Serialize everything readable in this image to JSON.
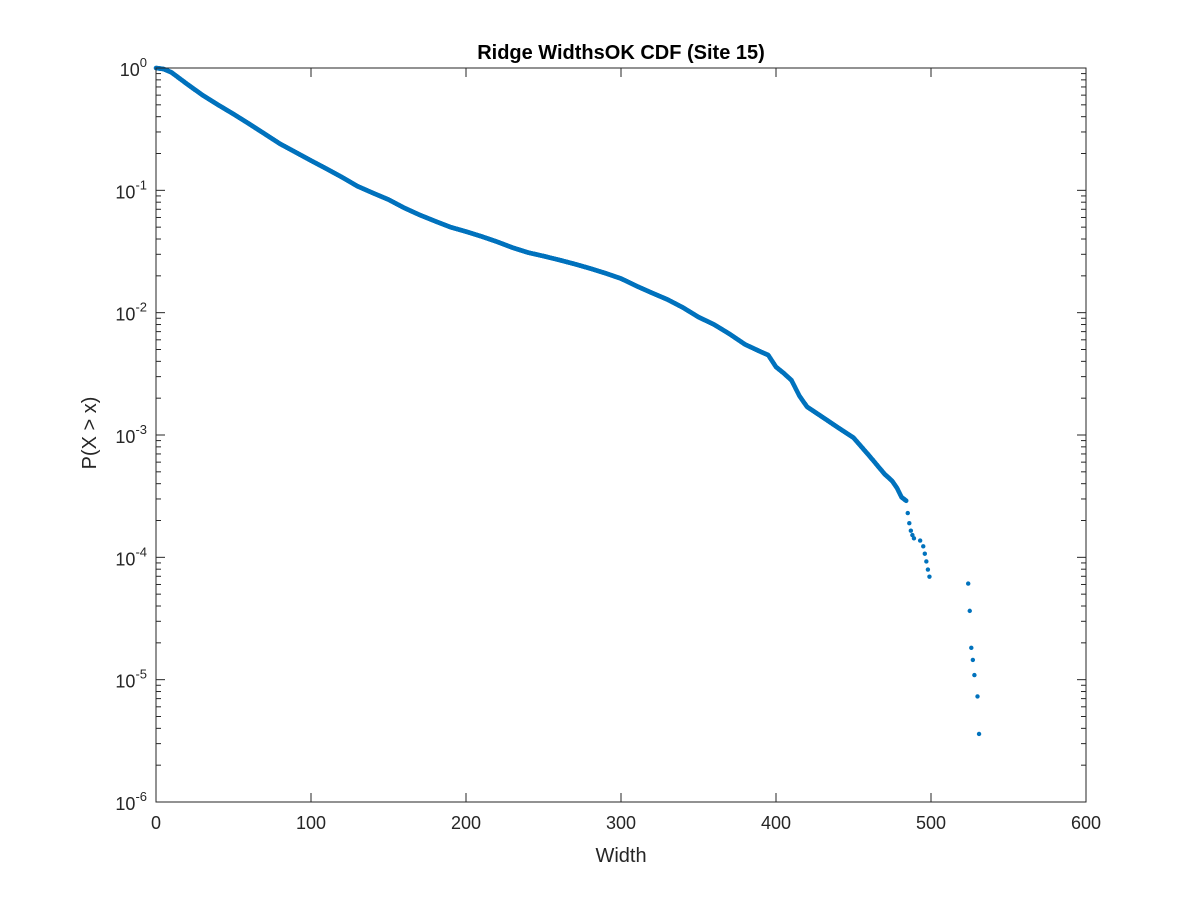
{
  "chart_data": {
    "type": "scatter",
    "title": "Ridge WidthsOK CDF (Site 15)",
    "xlabel": "Width",
    "ylabel": "P(X > x)",
    "xlim": [
      0,
      600
    ],
    "ylim": [
      1e-06,
      1
    ],
    "yscale": "log",
    "grid": false,
    "legend": "none",
    "box": true,
    "x_ticks": [
      0,
      100,
      200,
      300,
      400,
      500,
      600
    ],
    "y_ticks": [
      {
        "value": 1e-06,
        "base": "10",
        "exp": "-6"
      },
      {
        "value": 1e-05,
        "base": "10",
        "exp": "-5"
      },
      {
        "value": 0.0001,
        "base": "10",
        "exp": "-4"
      },
      {
        "value": 0.001,
        "base": "10",
        "exp": "-3"
      },
      {
        "value": 0.01,
        "base": "10",
        "exp": "-2"
      },
      {
        "value": 0.1,
        "base": "10",
        "exp": "-1"
      },
      {
        "value": 1,
        "base": "10",
        "exp": "0"
      }
    ],
    "marker_color": "#0072BD",
    "series": [
      {
        "curve": [
          [
            0,
            1.0
          ],
          [
            5,
            0.98
          ],
          [
            10,
            0.92
          ],
          [
            20,
            0.74
          ],
          [
            30,
            0.6
          ],
          [
            40,
            0.5
          ],
          [
            50,
            0.42
          ],
          [
            60,
            0.35
          ],
          [
            70,
            0.29
          ],
          [
            80,
            0.24
          ],
          [
            90,
            0.205
          ],
          [
            100,
            0.175
          ],
          [
            110,
            0.15
          ],
          [
            120,
            0.128
          ],
          [
            130,
            0.108
          ],
          [
            140,
            0.095
          ],
          [
            150,
            0.084
          ],
          [
            160,
            0.072
          ],
          [
            170,
            0.063
          ],
          [
            180,
            0.056
          ],
          [
            190,
            0.05
          ],
          [
            200,
            0.046
          ],
          [
            210,
            0.042
          ],
          [
            220,
            0.038
          ],
          [
            230,
            0.034
          ],
          [
            240,
            0.031
          ],
          [
            250,
            0.029
          ],
          [
            260,
            0.027
          ],
          [
            270,
            0.025
          ],
          [
            280,
            0.023
          ],
          [
            290,
            0.021
          ],
          [
            300,
            0.019
          ],
          [
            310,
            0.0165
          ],
          [
            320,
            0.0145
          ],
          [
            330,
            0.0128
          ],
          [
            340,
            0.011
          ],
          [
            350,
            0.0092
          ],
          [
            360,
            0.008
          ],
          [
            370,
            0.0067
          ],
          [
            380,
            0.0055
          ],
          [
            390,
            0.0048
          ],
          [
            395,
            0.0045
          ],
          [
            400,
            0.0036
          ],
          [
            405,
            0.0032
          ],
          [
            410,
            0.0028
          ],
          [
            415,
            0.0021
          ],
          [
            420,
            0.0017
          ],
          [
            430,
            0.0014
          ],
          [
            440,
            0.00115
          ],
          [
            450,
            0.00095
          ],
          [
            460,
            0.00068
          ],
          [
            470,
            0.00048
          ],
          [
            475,
            0.00042
          ],
          [
            478,
            0.00037
          ],
          [
            481,
            0.00031
          ],
          [
            484,
            0.00029
          ]
        ],
        "points": [
          [
            485,
            0.00023
          ],
          [
            486,
            0.00019
          ],
          [
            487,
            0.000165
          ],
          [
            488,
            0.000152
          ],
          [
            489,
            0.000143
          ],
          [
            493,
            0.000137
          ],
          [
            495,
            0.000123
          ],
          [
            496,
            0.000107
          ],
          [
            497,
            9.25e-05
          ],
          [
            498,
            7.95e-05
          ],
          [
            499,
            6.95e-05
          ],
          [
            524,
            6.1e-05
          ],
          [
            525,
            3.65e-05
          ],
          [
            526,
            1.82e-05
          ],
          [
            527,
            1.45e-05
          ],
          [
            528,
            1.09e-05
          ],
          [
            530,
            7.3e-06
          ],
          [
            531,
            3.6e-06
          ]
        ]
      }
    ]
  }
}
